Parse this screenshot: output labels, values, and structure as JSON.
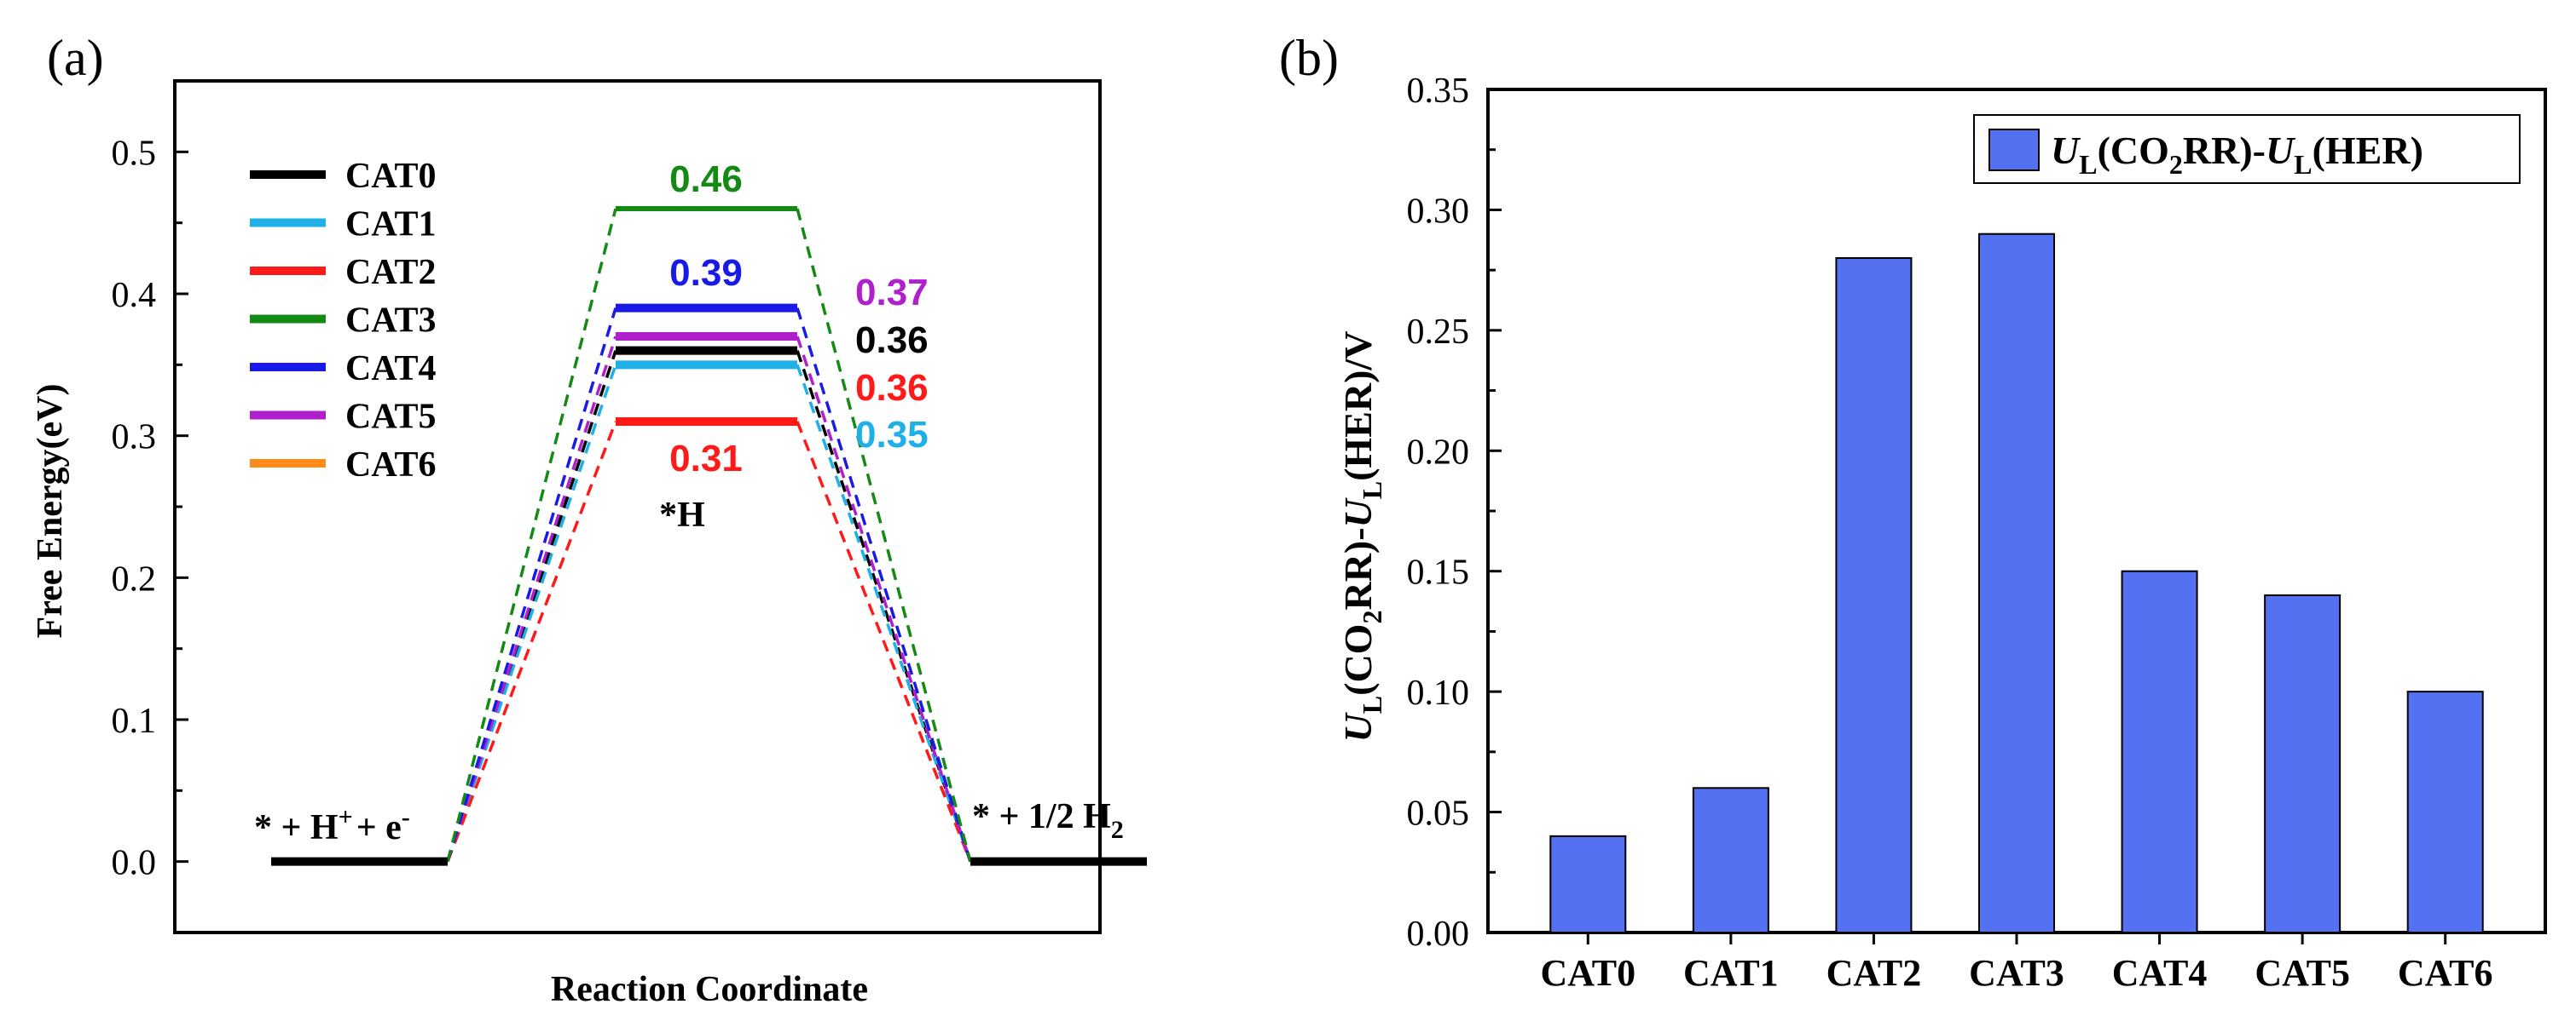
{
  "chart_data": [
    {
      "panel": "(a)",
      "type": "line",
      "title": "",
      "xlabel": "Reaction Coordinate",
      "ylabel": "Free Energy(eV)",
      "ylim": [
        -0.05,
        0.55
      ],
      "yticks": [
        "0.0",
        "0.1",
        "0.2",
        "0.3",
        "0.4",
        "0.5"
      ],
      "ytick_values": [
        0.0,
        0.1,
        0.2,
        0.3,
        0.4,
        0.5
      ],
      "grid": false,
      "legend_position": "top-left",
      "states": [
        "* + H+ + e-",
        "*H",
        "* + 1/2 H2"
      ],
      "state_labels": {
        "initial": {
          "base": "* + H",
          "sup": "+",
          "tail": "+ e",
          "sup2": "-"
        },
        "intermediate": "*H",
        "final": {
          "base": "* + 1/2 H",
          "sub": "2"
        }
      },
      "series": [
        {
          "name": "CAT0",
          "color": "#000000",
          "values": [
            0.0,
            0.36,
            0.0
          ],
          "label": "0.36"
        },
        {
          "name": "CAT1",
          "color": "#1fb0e8",
          "values": [
            0.0,
            0.35,
            0.0
          ],
          "label": "0.35"
        },
        {
          "name": "CAT2",
          "color": "#ff1a1a",
          "values": [
            0.0,
            0.31,
            0.0
          ],
          "label": "0.31"
        },
        {
          "name": "CAT3",
          "color": "#138a13",
          "values": [
            0.0,
            0.46,
            0.0
          ],
          "label": "0.46"
        },
        {
          "name": "CAT4",
          "color": "#1a1ae6",
          "values": [
            0.0,
            0.39,
            0.0
          ],
          "label": "0.39"
        },
        {
          "name": "CAT5",
          "color": "#b01fcc",
          "values": [
            0.0,
            0.37,
            0.0
          ],
          "label": "0.37"
        },
        {
          "name": "CAT6",
          "color": "#ff8c1a",
          "values": [
            0.0,
            0.36,
            0.0
          ],
          "label": "0.36"
        }
      ]
    },
    {
      "panel": "(b)",
      "type": "bar",
      "title": "",
      "xlabel": "",
      "categories": [
        "CAT0",
        "CAT1",
        "CAT2",
        "CAT3",
        "CAT4",
        "CAT5",
        "CAT6"
      ],
      "values": [
        0.04,
        0.06,
        0.28,
        0.29,
        0.15,
        0.14,
        0.1
      ],
      "ylim": [
        0.0,
        0.35
      ],
      "yticks": [
        "0.00",
        "0.05",
        "0.10",
        "0.15",
        "0.20",
        "0.25",
        "0.30",
        "0.35"
      ],
      "ytick_values": [
        0.0,
        0.05,
        0.1,
        0.15,
        0.2,
        0.25,
        0.3,
        0.35
      ],
      "bar_color": "#5471f2",
      "grid": false,
      "legend_position": "top-right",
      "ylabel": {
        "U": "U",
        "L": "L",
        "co2a": "(CO",
        "two": "2",
        "rr": "RR)-",
        "her": "(HER)/V"
      },
      "legend_label": {
        "U": "U",
        "L": "L",
        "co2a": "(CO",
        "two": "2",
        "rr": "RR)-",
        "her": "(HER)"
      }
    }
  ]
}
